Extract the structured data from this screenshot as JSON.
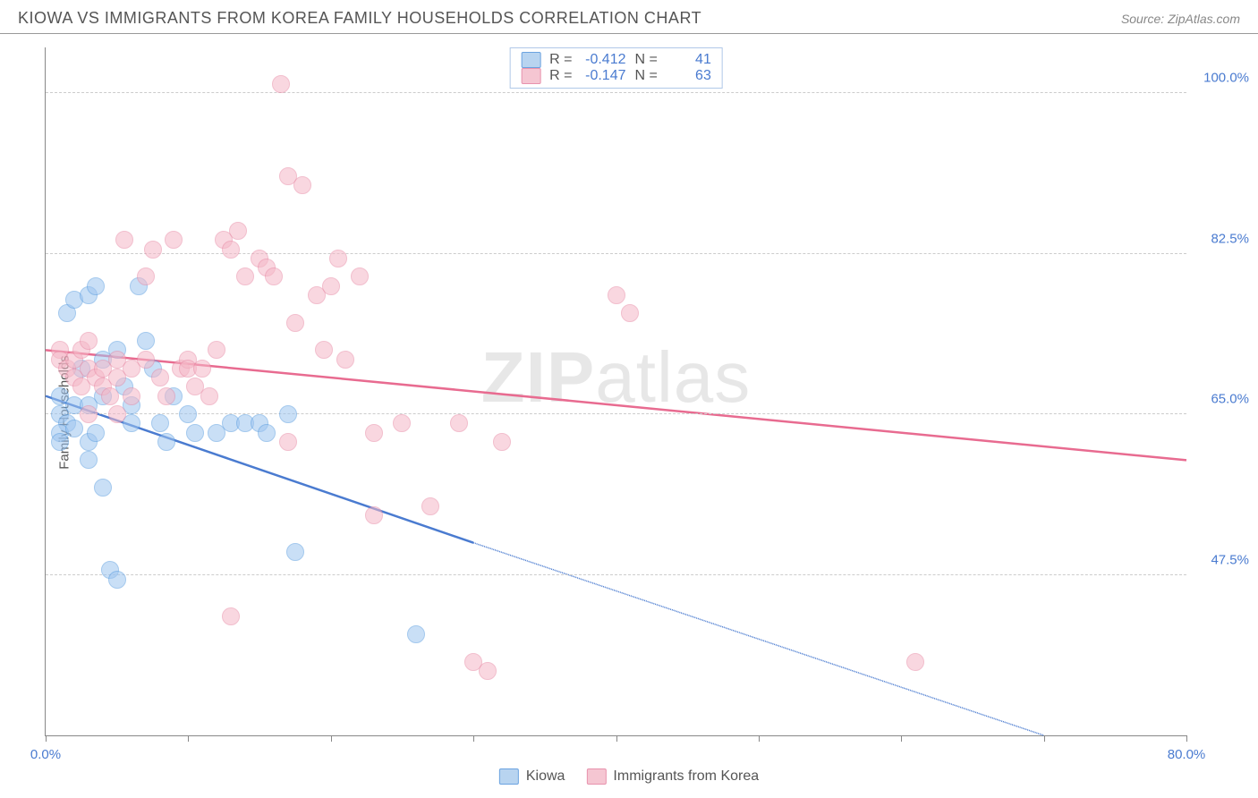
{
  "header": {
    "title": "KIOWA VS IMMIGRANTS FROM KOREA FAMILY HOUSEHOLDS CORRELATION CHART",
    "source_prefix": "Source: ",
    "source_name": "ZipAtlas.com"
  },
  "chart": {
    "type": "scatter",
    "ylabel": "Family Households",
    "watermark": {
      "bold": "ZIP",
      "thin": "atlas"
    },
    "xlim": [
      0,
      80
    ],
    "ylim": [
      30,
      105
    ],
    "yticks": [
      {
        "v": 47.5,
        "label": "47.5%"
      },
      {
        "v": 65.0,
        "label": "65.0%"
      },
      {
        "v": 82.5,
        "label": "82.5%"
      },
      {
        "v": 100.0,
        "label": "100.0%"
      }
    ],
    "xticks_major": [
      0,
      80
    ],
    "xtick_labels": [
      {
        "v": 0,
        "label": "0.0%"
      },
      {
        "v": 80,
        "label": "80.0%"
      }
    ],
    "xticks_minor": [
      10,
      20,
      30,
      40,
      50,
      60,
      70
    ],
    "series": [
      {
        "key": "a",
        "name": "Kiowa",
        "color": "#4a7bd0",
        "point_fill": "#9ec5f0",
        "point_stroke": "#5a9de0",
        "R": "-0.412",
        "N": "41",
        "trend": {
          "x1": 0,
          "y1": 67,
          "x2_solid": 30,
          "y2_solid": 51,
          "x2": 70,
          "y2": 30
        },
        "points": [
          [
            1,
            67
          ],
          [
            1,
            65
          ],
          [
            1.5,
            64
          ],
          [
            1,
            63
          ],
          [
            1,
            62
          ],
          [
            1.5,
            76
          ],
          [
            2,
            77.5
          ],
          [
            2,
            66
          ],
          [
            3,
            78
          ],
          [
            2.5,
            70
          ],
          [
            3,
            66
          ],
          [
            3,
            62
          ],
          [
            3,
            60
          ],
          [
            3.5,
            79
          ],
          [
            4,
            71
          ],
          [
            4,
            67
          ],
          [
            4,
            57
          ],
          [
            4.5,
            48
          ],
          [
            5,
            47
          ],
          [
            5,
            72
          ],
          [
            5.5,
            68
          ],
          [
            6,
            64
          ],
          [
            6,
            66
          ],
          [
            6.5,
            79
          ],
          [
            7,
            73
          ],
          [
            7.5,
            70
          ],
          [
            8,
            64
          ],
          [
            8.5,
            62
          ],
          [
            9,
            67
          ],
          [
            10,
            65
          ],
          [
            10.5,
            63
          ],
          [
            12,
            63
          ],
          [
            13,
            64
          ],
          [
            14,
            64
          ],
          [
            15,
            64
          ],
          [
            15.5,
            63
          ],
          [
            17,
            65
          ],
          [
            17.5,
            50
          ],
          [
            26,
            41
          ],
          [
            3.5,
            63
          ],
          [
            2,
            63.5
          ]
        ]
      },
      {
        "key": "b",
        "name": "Immigrants from Korea",
        "color": "#e86b90",
        "point_fill": "#f5b8c7",
        "point_stroke": "#e88aa5",
        "R": "-0.147",
        "N": "63",
        "trend": {
          "x1": 0,
          "y1": 72,
          "x2_solid": 80,
          "y2_solid": 60,
          "x2": 80,
          "y2": 60
        },
        "points": [
          [
            1,
            72
          ],
          [
            1,
            71
          ],
          [
            1.5,
            70
          ],
          [
            2,
            71
          ],
          [
            2,
            69
          ],
          [
            2.5,
            72
          ],
          [
            2.5,
            68
          ],
          [
            3,
            70
          ],
          [
            3,
            73
          ],
          [
            3.5,
            69
          ],
          [
            4,
            68
          ],
          [
            4,
            70
          ],
          [
            4.5,
            67
          ],
          [
            5,
            69
          ],
          [
            5,
            71
          ],
          [
            5.5,
            84
          ],
          [
            6,
            70
          ],
          [
            6,
            67
          ],
          [
            7,
            80
          ],
          [
            7,
            71
          ],
          [
            7.5,
            83
          ],
          [
            8,
            69
          ],
          [
            8.5,
            67
          ],
          [
            9,
            84
          ],
          [
            9.5,
            70
          ],
          [
            10,
            71
          ],
          [
            10,
            70
          ],
          [
            10.5,
            68
          ],
          [
            11,
            70
          ],
          [
            11.5,
            67
          ],
          [
            12,
            72
          ],
          [
            12.5,
            84
          ],
          [
            13,
            83
          ],
          [
            13.5,
            85
          ],
          [
            14,
            80
          ],
          [
            15,
            82
          ],
          [
            15.5,
            81
          ],
          [
            16,
            80
          ],
          [
            16.5,
            101
          ],
          [
            17,
            91
          ],
          [
            17.5,
            75
          ],
          [
            18,
            90
          ],
          [
            19,
            78
          ],
          [
            19.5,
            72
          ],
          [
            20,
            79
          ],
          [
            20.5,
            82
          ],
          [
            21,
            71
          ],
          [
            22,
            80
          ],
          [
            23,
            63
          ],
          [
            13,
            43
          ],
          [
            17,
            62
          ],
          [
            23,
            54
          ],
          [
            25,
            64
          ],
          [
            27,
            55
          ],
          [
            29,
            64
          ],
          [
            30,
            38
          ],
          [
            31,
            37
          ],
          [
            32,
            62
          ],
          [
            40,
            78
          ],
          [
            41,
            76
          ],
          [
            61,
            38
          ],
          [
            3,
            65
          ],
          [
            5,
            65
          ]
        ]
      }
    ],
    "legend": [
      {
        "series": "a",
        "label": "Kiowa"
      },
      {
        "series": "b",
        "label": "Immigrants from Korea"
      }
    ],
    "stats_labels": {
      "R": "R =",
      "N": "N ="
    }
  }
}
